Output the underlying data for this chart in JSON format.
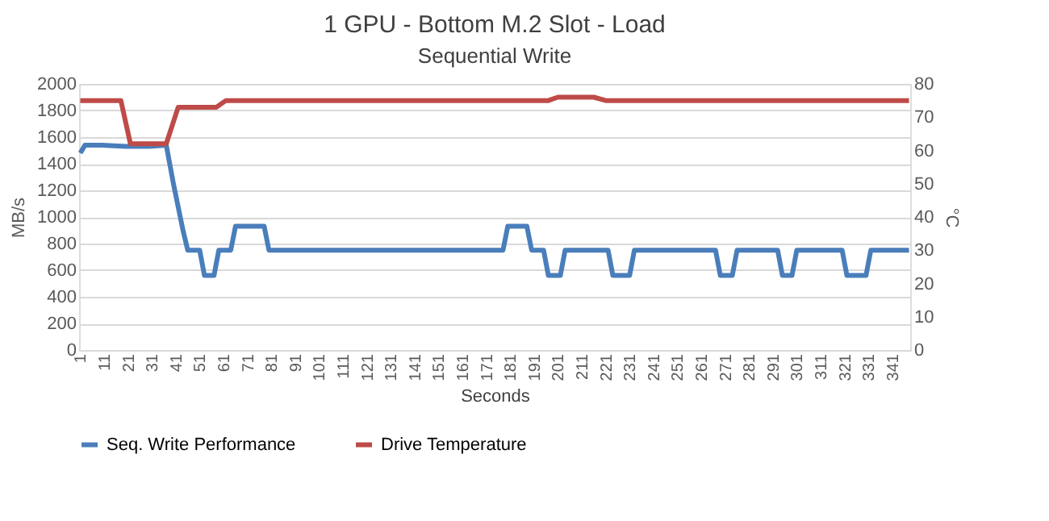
{
  "chart_data": {
    "type": "line",
    "title": "1 GPU - Bottom M.2 Slot - Load",
    "subtitle": "Sequential Write",
    "xlabel": "Seconds",
    "ylabel": "MB/s",
    "y2label": "°C",
    "xlim": [
      0.5,
      348.5
    ],
    "xticks": [
      1,
      11,
      21,
      31,
      41,
      51,
      61,
      71,
      81,
      91,
      101,
      111,
      121,
      131,
      141,
      151,
      161,
      171,
      181,
      191,
      201,
      211,
      221,
      231,
      241,
      251,
      261,
      271,
      281,
      291,
      301,
      311,
      321,
      331,
      341
    ],
    "ylim": [
      0,
      2000
    ],
    "yticks": [
      0,
      200,
      400,
      600,
      800,
      1000,
      1200,
      1400,
      1600,
      1800,
      2000
    ],
    "y2lim": [
      0,
      80
    ],
    "y2ticks": [
      0,
      10,
      20,
      30,
      40,
      50,
      60,
      70,
      80
    ],
    "grid": "y",
    "legend": "bottom",
    "marker": "none",
    "line_style": "solid",
    "series": [
      {
        "name": "Seq. Write Performance",
        "color": "#4a7ebb",
        "x": [
          1,
          3,
          10,
          20,
          30,
          37,
          40,
          44,
          46,
          51,
          53,
          57,
          59,
          64,
          66,
          78,
          80,
          178,
          180,
          188,
          190,
          195,
          197,
          202,
          204,
          222,
          224,
          231,
          233,
          267,
          269,
          274,
          276,
          293,
          295,
          299,
          301,
          320,
          322,
          330,
          332,
          348
        ],
        "values": [
          1480,
          1540,
          1540,
          1530,
          1530,
          1540,
          1250,
          900,
          750,
          750,
          560,
          560,
          750,
          750,
          930,
          930,
          750,
          750,
          930,
          930,
          750,
          750,
          560,
          560,
          750,
          750,
          560,
          560,
          750,
          750,
          560,
          560,
          750,
          750,
          560,
          560,
          750,
          750,
          560,
          560,
          750,
          750
        ]
      },
      {
        "name": "Drive Temperature",
        "color": "#be4b48",
        "axis": "y2",
        "x": [
          1,
          18,
          22,
          37,
          42,
          58,
          62,
          197,
          201,
          216,
          221,
          348
        ],
        "values": [
          75,
          75,
          62,
          62,
          73,
          73,
          75,
          75,
          76,
          76,
          75,
          75
        ]
      }
    ]
  }
}
